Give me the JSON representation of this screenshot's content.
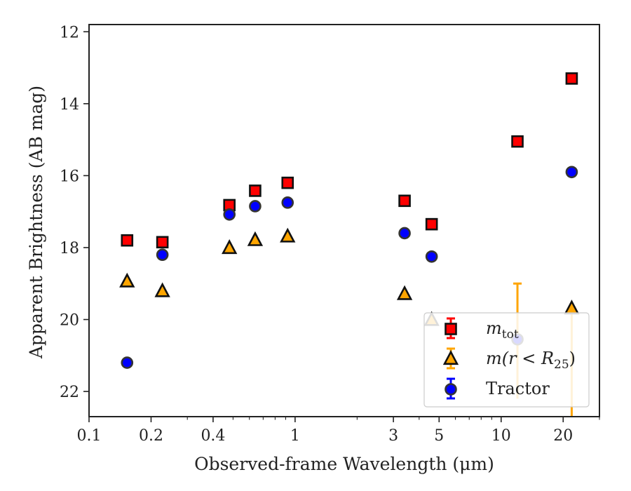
{
  "chart_data": {
    "type": "scatter",
    "xlabel": "Observed-frame Wavelength (μm)",
    "ylabel": "Apparent Brightness (AB mag)",
    "xscale": "log",
    "yaxis_inverted": true,
    "xlim": [
      0.1,
      30
    ],
    "ylim": [
      22.7,
      11.8
    ],
    "x_ticks": [
      {
        "value": 0.1,
        "label": "0.1"
      },
      {
        "value": 0.2,
        "label": "0.2"
      },
      {
        "value": 0.4,
        "label": "0.4"
      },
      {
        "value": 1,
        "label": "1"
      },
      {
        "value": 3,
        "label": "3"
      },
      {
        "value": 5,
        "label": "5"
      },
      {
        "value": 10,
        "label": "10"
      },
      {
        "value": 20,
        "label": "20"
      }
    ],
    "x_minor_ticks": [
      0.3,
      0.5,
      0.6,
      0.7,
      0.8,
      0.9,
      2,
      4,
      6,
      7,
      8,
      9,
      30
    ],
    "y_ticks": [
      {
        "value": 12,
        "label": "12"
      },
      {
        "value": 14,
        "label": "14"
      },
      {
        "value": 16,
        "label": "16"
      },
      {
        "value": 18,
        "label": "18"
      },
      {
        "value": 20,
        "label": "20"
      },
      {
        "value": 22,
        "label": "22"
      }
    ],
    "legend": {
      "position": "lower right",
      "entries": [
        {
          "series": "m_tot",
          "label_base": "m",
          "label_sub": "tot",
          "label_math_suffix": ""
        },
        {
          "series": "m_r25",
          "label_base": "m(r < R",
          "label_sub": "25",
          "label_math_suffix": ")"
        },
        {
          "series": "tractor",
          "label_base": "Tractor",
          "label_sub": "",
          "label_math_suffix": ""
        }
      ]
    },
    "series": [
      {
        "name": "m_tot",
        "marker": "square",
        "color": "#ff0000",
        "edge_color": "#111111",
        "points": [
          {
            "x": 0.153,
            "y": 17.8
          },
          {
            "x": 0.227,
            "y": 17.85
          },
          {
            "x": 0.48,
            "y": 16.82
          },
          {
            "x": 0.64,
            "y": 16.42
          },
          {
            "x": 0.92,
            "y": 16.2
          },
          {
            "x": 3.4,
            "y": 16.7
          },
          {
            "x": 4.6,
            "y": 17.35
          },
          {
            "x": 12.0,
            "y": 15.05
          },
          {
            "x": 22.0,
            "y": 13.3
          }
        ]
      },
      {
        "name": "m_r25",
        "marker": "triangle",
        "color": "#ffa500",
        "edge_color": "#111111",
        "points": [
          {
            "x": 0.153,
            "y": 18.95
          },
          {
            "x": 0.227,
            "y": 19.22
          },
          {
            "x": 0.48,
            "y": 18.02
          },
          {
            "x": 0.64,
            "y": 17.8
          },
          {
            "x": 0.92,
            "y": 17.7
          },
          {
            "x": 3.4,
            "y": 19.3
          },
          {
            "x": 4.6,
            "y": 20.02
          },
          {
            "x": 22.0,
            "y": 19.7,
            "yerr_low": 3.0
          }
        ],
        "error_only": [
          {
            "x": 12.0,
            "y": 20.6,
            "yerr_high": 1.6,
            "yerr_low": 1.6
          }
        ]
      },
      {
        "name": "tractor",
        "marker": "circle",
        "color": "#0000ff",
        "edge_color": "#333333",
        "points": [
          {
            "x": 0.153,
            "y": 21.2
          },
          {
            "x": 0.227,
            "y": 18.2
          },
          {
            "x": 0.48,
            "y": 17.08
          },
          {
            "x": 0.64,
            "y": 16.85
          },
          {
            "x": 0.92,
            "y": 16.75
          },
          {
            "x": 3.4,
            "y": 17.6
          },
          {
            "x": 4.6,
            "y": 18.25
          },
          {
            "x": 12.0,
            "y": 20.55
          },
          {
            "x": 22.0,
            "y": 15.9
          }
        ]
      }
    ]
  }
}
